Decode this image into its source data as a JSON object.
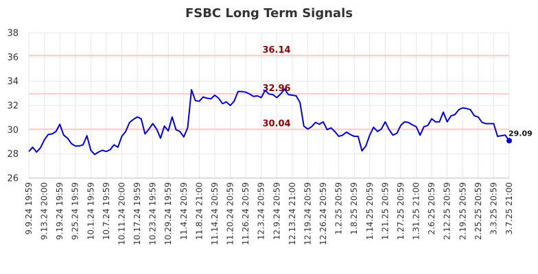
{
  "chart_data": {
    "type": "line",
    "title": "FSBC Long Term Signals",
    "xlabel": "",
    "ylabel": "",
    "ylim": [
      26,
      38
    ],
    "y_ticks": [
      "26",
      "28",
      "30",
      "32",
      "34",
      "36",
      "38"
    ],
    "x_tick_labels": [
      "9.9.24 19:59",
      "9.13.24 20:00",
      "9.19.24 19:59",
      "9.25.24 19:59",
      "10.1.24 19:59",
      "10.7.24 19:59",
      "10.11.24 20:00",
      "10.17.24 19:59",
      "10.23.24 19:59",
      "10.29.24 19:59",
      "11.4.24 20:59",
      "11.8.24 21:00",
      "11.14.24 20:59",
      "11.20.24 20:59",
      "11.26.24 20:59",
      "12.3.24 20:59",
      "12.9.24 20:59",
      "12.13.24 21:00",
      "12.19.24 20:59",
      "12.26.24 20:59",
      "1.2.25 20:59",
      "1.8.25 20:59",
      "1.14.25 20:59",
      "1.21.25 20:59",
      "1.27.25 20:59",
      "1.31.25 21:00",
      "2.6.25 20:59",
      "2.12.25 20:59",
      "2.19.25 20:59",
      "2.25.25 20:59",
      "3.3.25 20:59",
      "3.7.25 21:00"
    ],
    "grid": true,
    "line_color": "#0000cc",
    "level_line_color": "#ffcccc",
    "level_label_color": "#8b0000",
    "levels": [
      {
        "value": 36.14,
        "label": "36.14"
      },
      {
        "value": 32.96,
        "label": "32.96"
      },
      {
        "value": 30.04,
        "label": "30.04"
      }
    ],
    "last_value_label": "29.09",
    "series": [
      {
        "values": [
          28.2,
          28.55,
          28.15,
          28.5,
          29.15,
          29.6,
          29.65,
          29.85,
          30.45,
          29.55,
          29.3,
          28.85,
          28.65,
          28.65,
          28.75,
          29.5,
          28.3,
          27.95,
          28.15,
          28.3,
          28.2,
          28.35,
          28.75,
          28.55,
          29.45,
          29.85,
          30.6,
          30.85,
          31.05,
          30.9,
          29.65,
          30.05,
          30.5,
          30.05,
          29.3,
          30.3,
          29.9,
          31.05,
          30.0,
          29.85,
          29.4,
          30.15,
          33.3,
          32.4,
          32.35,
          32.7,
          32.6,
          32.55,
          32.85,
          32.6,
          32.15,
          32.3,
          32.0,
          32.35,
          33.15,
          33.15,
          33.1,
          32.95,
          32.75,
          32.8,
          32.65,
          33.25,
          32.95,
          32.9,
          32.65,
          32.95,
          33.35,
          32.9,
          32.85,
          32.8,
          32.25,
          30.3,
          30.05,
          30.25,
          30.6,
          30.45,
          30.65,
          30.0,
          30.15,
          29.85,
          29.45,
          29.55,
          29.8,
          29.6,
          29.45,
          29.45,
          28.25,
          28.65,
          29.55,
          30.2,
          29.85,
          30.05,
          30.65,
          30.0,
          29.55,
          29.7,
          30.35,
          30.65,
          30.6,
          30.4,
          30.25,
          29.55,
          30.25,
          30.35,
          30.9,
          30.65,
          30.65,
          31.45,
          30.65,
          31.15,
          31.25,
          31.65,
          31.8,
          31.75,
          31.65,
          31.15,
          31.05,
          30.6,
          30.5,
          30.5,
          30.5,
          29.45,
          29.5,
          29.55,
          29.09
        ]
      }
    ]
  }
}
